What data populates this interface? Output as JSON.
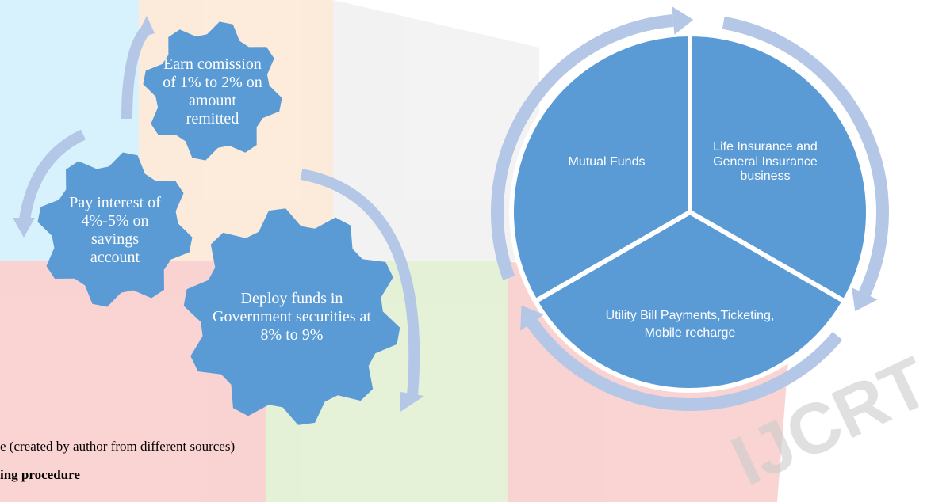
{
  "gears": [
    {
      "label": "Earn comission of 1% to 2% on amount remitted"
    },
    {
      "label": "Pay interest of 4%-5% on savings account"
    },
    {
      "label": "Deploy funds in Government securities at 8% to 9%"
    }
  ],
  "cycle": [
    {
      "label": "Mutual Funds"
    },
    {
      "label": "Life Insurance and General Insurance business"
    },
    {
      "label": "Utility Bill Payments,Ticketing, Mobile recharge"
    }
  ],
  "caption": "e (created by author from different sources)",
  "heading": "ing procedure",
  "watermark": "IJCRT"
}
